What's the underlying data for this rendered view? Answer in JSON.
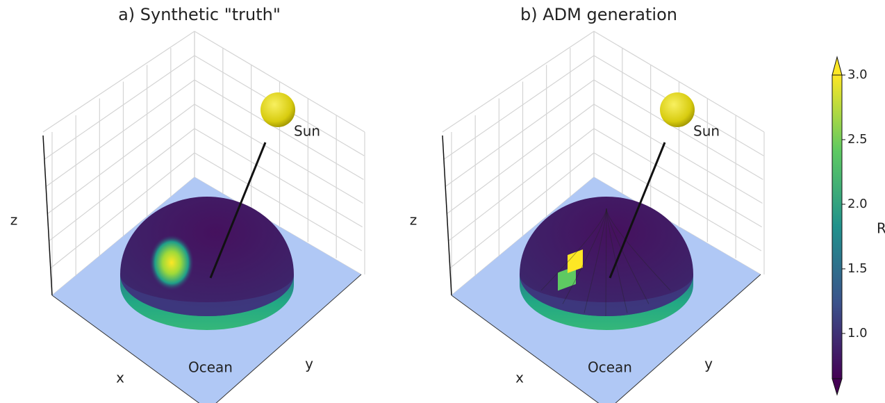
{
  "panels": [
    {
      "title": "a) Synthetic \"truth\"",
      "x_label": "x",
      "y_label": "y",
      "z_label": "z",
      "sun_label": "Sun",
      "ocean_label": "Ocean"
    },
    {
      "title": "b) ADM generation",
      "x_label": "x",
      "y_label": "y",
      "z_label": "z",
      "sun_label": "Sun",
      "ocean_label": "Ocean"
    }
  ],
  "colorbar": {
    "label": "R",
    "lim": [
      0.65,
      3.0
    ],
    "ticks": [
      {
        "value": 1,
        "label": "1.0"
      },
      1.5,
      {
        "value": 2,
        "label": "2.0"
      },
      2.5,
      {
        "value": 3,
        "label": "3.0"
      }
    ]
  }
}
